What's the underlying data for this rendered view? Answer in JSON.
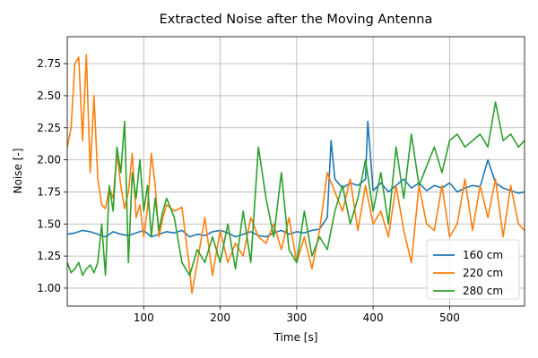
{
  "chart_data": {
    "type": "line",
    "title": "Extracted Noise after the Moving Antenna",
    "xlabel": "Time [s]",
    "ylabel": "Noise [-]",
    "xlim": [
      0,
      598
    ],
    "ylim": [
      0.86,
      2.96
    ],
    "xticks": [
      100,
      200,
      300,
      400,
      500
    ],
    "yticks": [
      1.0,
      1.25,
      1.5,
      1.75,
      2.0,
      2.25,
      2.5,
      2.75
    ],
    "grid": true,
    "legend_position": "lower right",
    "series": [
      {
        "name": "160 cm",
        "color": "#1f77b4",
        "x": [
          0,
          10,
          20,
          30,
          40,
          50,
          60,
          70,
          80,
          90,
          100,
          110,
          120,
          130,
          140,
          150,
          160,
          170,
          180,
          190,
          200,
          210,
          220,
          230,
          240,
          250,
          260,
          270,
          280,
          290,
          300,
          310,
          320,
          330,
          340,
          345,
          350,
          360,
          370,
          380,
          390,
          393,
          400,
          410,
          420,
          430,
          440,
          450,
          460,
          470,
          480,
          490,
          500,
          510,
          520,
          530,
          540,
          550,
          560,
          570,
          580,
          590,
          598
        ],
        "y": [
          1.42,
          1.43,
          1.45,
          1.44,
          1.42,
          1.4,
          1.44,
          1.42,
          1.41,
          1.43,
          1.45,
          1.4,
          1.42,
          1.44,
          1.43,
          1.45,
          1.4,
          1.42,
          1.41,
          1.44,
          1.45,
          1.43,
          1.4,
          1.42,
          1.44,
          1.41,
          1.4,
          1.43,
          1.45,
          1.42,
          1.44,
          1.43,
          1.45,
          1.46,
          1.55,
          2.15,
          1.85,
          1.78,
          1.82,
          1.8,
          1.85,
          2.3,
          1.76,
          1.82,
          1.75,
          1.8,
          1.85,
          1.78,
          1.82,
          1.76,
          1.8,
          1.78,
          1.82,
          1.75,
          1.78,
          1.8,
          1.79,
          2.0,
          1.82,
          1.78,
          1.76,
          1.74,
          1.75
        ]
      },
      {
        "name": "220 cm",
        "color": "#ff7f0e",
        "x": [
          0,
          5,
          10,
          15,
          20,
          25,
          30,
          35,
          40,
          45,
          50,
          55,
          60,
          65,
          70,
          75,
          80,
          85,
          90,
          95,
          100,
          105,
          110,
          115,
          120,
          125,
          130,
          140,
          150,
          160,
          163,
          170,
          180,
          190,
          200,
          210,
          220,
          230,
          240,
          250,
          260,
          270,
          280,
          290,
          300,
          310,
          320,
          330,
          340,
          350,
          360,
          370,
          380,
          390,
          400,
          410,
          420,
          430,
          440,
          450,
          460,
          470,
          480,
          490,
          500,
          510,
          520,
          530,
          540,
          550,
          560,
          570,
          580,
          590,
          598
        ],
        "y": [
          2.1,
          2.25,
          2.75,
          2.8,
          2.15,
          2.82,
          1.9,
          2.5,
          1.85,
          1.65,
          1.62,
          1.78,
          1.7,
          2.05,
          1.8,
          1.62,
          1.75,
          2.05,
          1.55,
          1.65,
          1.4,
          1.62,
          2.05,
          1.8,
          1.4,
          1.55,
          1.65,
          1.6,
          1.63,
          1.15,
          0.96,
          1.2,
          1.55,
          1.1,
          1.45,
          1.2,
          1.35,
          1.25,
          1.55,
          1.4,
          1.35,
          1.5,
          1.3,
          1.55,
          1.2,
          1.4,
          1.15,
          1.45,
          1.9,
          1.75,
          1.6,
          1.85,
          1.45,
          1.8,
          1.5,
          1.6,
          1.4,
          1.8,
          1.45,
          1.2,
          1.8,
          1.5,
          1.45,
          1.8,
          1.4,
          1.5,
          1.85,
          1.45,
          1.8,
          1.55,
          1.85,
          1.4,
          1.8,
          1.5,
          1.45
        ]
      },
      {
        "name": "280 cm",
        "color": "#2ca02c",
        "x": [
          0,
          5,
          10,
          15,
          20,
          25,
          30,
          35,
          40,
          45,
          50,
          55,
          60,
          65,
          70,
          75,
          80,
          85,
          90,
          95,
          100,
          105,
          110,
          115,
          120,
          125,
          130,
          140,
          150,
          160,
          170,
          180,
          190,
          200,
          210,
          220,
          230,
          240,
          250,
          260,
          270,
          280,
          290,
          300,
          310,
          320,
          330,
          340,
          350,
          360,
          370,
          380,
          390,
          400,
          410,
          420,
          430,
          440,
          450,
          460,
          470,
          480,
          490,
          500,
          510,
          520,
          530,
          540,
          550,
          560,
          570,
          580,
          590,
          598
        ],
        "y": [
          1.2,
          1.12,
          1.15,
          1.2,
          1.1,
          1.15,
          1.18,
          1.12,
          1.2,
          1.5,
          1.1,
          1.8,
          1.6,
          2.1,
          1.9,
          2.3,
          1.2,
          1.9,
          1.7,
          2.0,
          1.6,
          1.8,
          1.4,
          1.7,
          1.45,
          1.6,
          1.7,
          1.55,
          1.2,
          1.1,
          1.3,
          1.2,
          1.4,
          1.2,
          1.5,
          1.15,
          1.6,
          1.2,
          2.1,
          1.7,
          1.4,
          1.9,
          1.3,
          1.2,
          1.6,
          1.25,
          1.4,
          1.3,
          1.6,
          1.8,
          1.5,
          1.7,
          2.0,
          1.6,
          1.9,
          1.5,
          2.1,
          1.7,
          2.2,
          1.8,
          1.95,
          2.1,
          1.9,
          2.15,
          2.2,
          2.1,
          2.15,
          2.2,
          2.1,
          2.45,
          2.15,
          2.2,
          2.1,
          2.15
        ]
      }
    ]
  }
}
